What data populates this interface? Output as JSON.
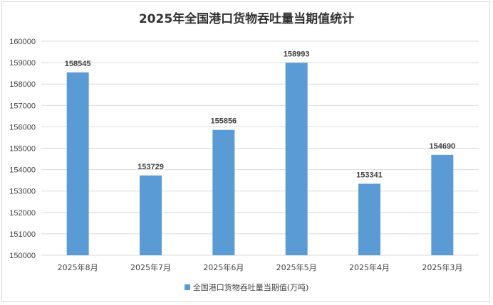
{
  "chart_data": {
    "type": "bar",
    "title": "2025年全国港口货物吞吐量当期值统计",
    "categories": [
      "2025年8月",
      "2025年7月",
      "2025年6月",
      "2025年5月",
      "2025年4月",
      "2025年3月"
    ],
    "series": [
      {
        "name": "全国港口货物吞吐量当期值(万吨)",
        "values": [
          158545,
          153729,
          155856,
          158993,
          153341,
          154690
        ],
        "color": "#5b9bd5"
      }
    ],
    "ylim": [
      150000,
      160000
    ],
    "yticks": [
      "150000",
      "151000",
      "152000",
      "153000",
      "154000",
      "155000",
      "156000",
      "157000",
      "158000",
      "159000",
      "160000"
    ],
    "grid": true,
    "legend_position": "bottom",
    "data_labels": true
  }
}
